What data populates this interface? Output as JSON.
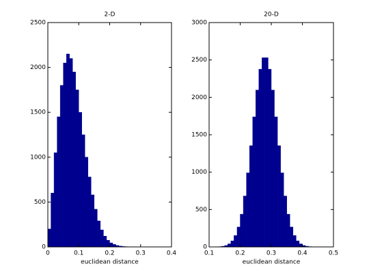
{
  "chart_data": [
    {
      "type": "histogram",
      "title": "2-D",
      "x_label": "euclidean distance",
      "color": "#00008f",
      "bins": [
        0,
        0.01,
        0.02,
        0.03,
        0.04,
        0.05,
        0.06,
        0.07,
        0.08,
        0.09,
        0.1,
        0.11,
        0.12,
        0.13,
        0.14,
        0.15,
        0.16,
        0.17,
        0.18,
        0.19,
        0.2,
        0.21,
        0.22,
        0.23,
        0.24,
        0.25,
        0.26,
        0.27,
        0.28,
        0.29,
        0.3
      ],
      "values": [
        200,
        600,
        1050,
        1450,
        1800,
        2050,
        2150,
        2100,
        1950,
        1750,
        1500,
        1250,
        1000,
        780,
        580,
        420,
        290,
        190,
        120,
        75,
        45,
        28,
        16,
        9,
        5,
        3,
        2,
        1,
        1,
        0
      ],
      "xlim": [
        0,
        0.4
      ],
      "xticks": [
        0,
        0.1,
        0.2,
        0.3,
        0.4
      ],
      "ylim": [
        0,
        2500
      ],
      "yticks": [
        0,
        500,
        1000,
        1500,
        2000,
        2500
      ]
    },
    {
      "type": "histogram",
      "title": "20-D",
      "x_label": "euclidean distance",
      "color": "#00008f",
      "bins": [
        0.13,
        0.14,
        0.15,
        0.16,
        0.17,
        0.18,
        0.19,
        0.2,
        0.21,
        0.22,
        0.23,
        0.24,
        0.25,
        0.26,
        0.27,
        0.28,
        0.29,
        0.3,
        0.31,
        0.32,
        0.33,
        0.34,
        0.35,
        0.36,
        0.37,
        0.38,
        0.39,
        0.4,
        0.41,
        0.42,
        0.43,
        0.44,
        0.45,
        0.46,
        0.47
      ],
      "values": [
        4,
        9,
        19,
        41,
        81,
        152,
        266,
        438,
        681,
        991,
        1354,
        1739,
        2098,
        2377,
        2530,
        2530,
        2377,
        2098,
        1739,
        1354,
        991,
        681,
        438,
        266,
        152,
        81,
        41,
        19,
        9,
        4,
        2,
        1,
        1,
        0
      ],
      "xlim": [
        0.1,
        0.5
      ],
      "xticks": [
        0.1,
        0.2,
        0.3,
        0.4,
        0.5
      ],
      "ylim": [
        0,
        3000
      ],
      "yticks": [
        0,
        500,
        1000,
        1500,
        2000,
        2500,
        3000
      ]
    }
  ]
}
